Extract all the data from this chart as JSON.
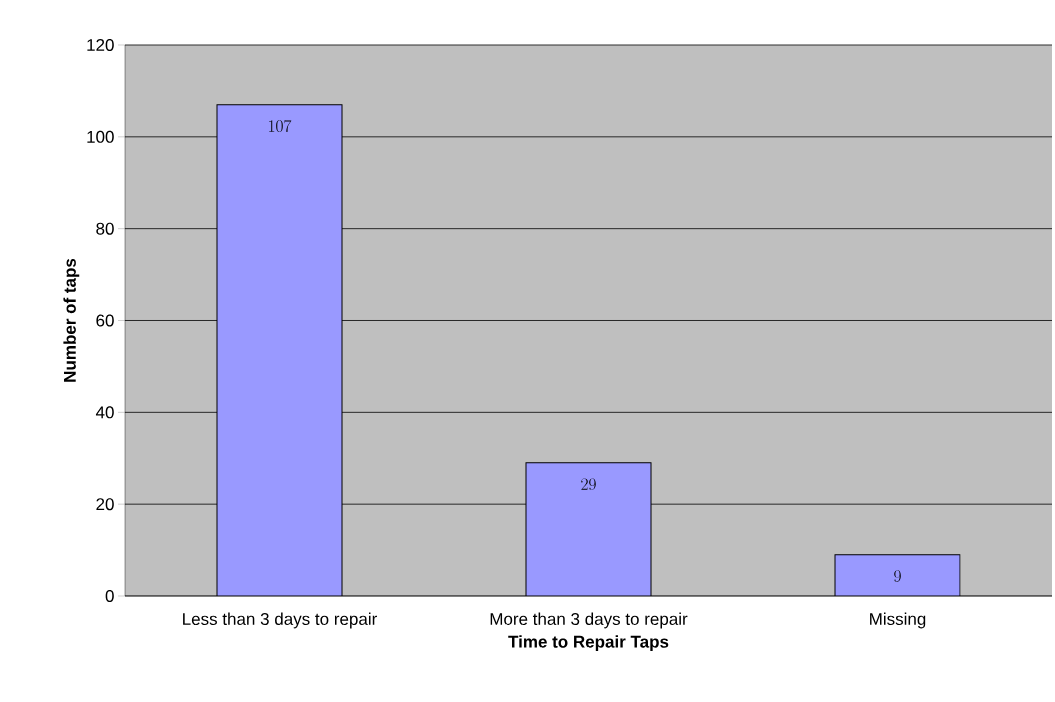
{
  "chart_data": {
    "type": "bar",
    "xlabel": "Time to Repair Taps",
    "ylabel": "Number of taps",
    "categories": [
      "Less than 3 days to repair",
      "More than 3 days to repair",
      "Missing"
    ],
    "values": [
      107,
      29,
      9
    ],
    "color": "#9999ff",
    "ylim": [
      0,
      120
    ],
    "yticks": [
      0,
      20,
      40,
      60,
      80,
      100,
      120
    ],
    "grid": "y",
    "data_labels": true
  }
}
